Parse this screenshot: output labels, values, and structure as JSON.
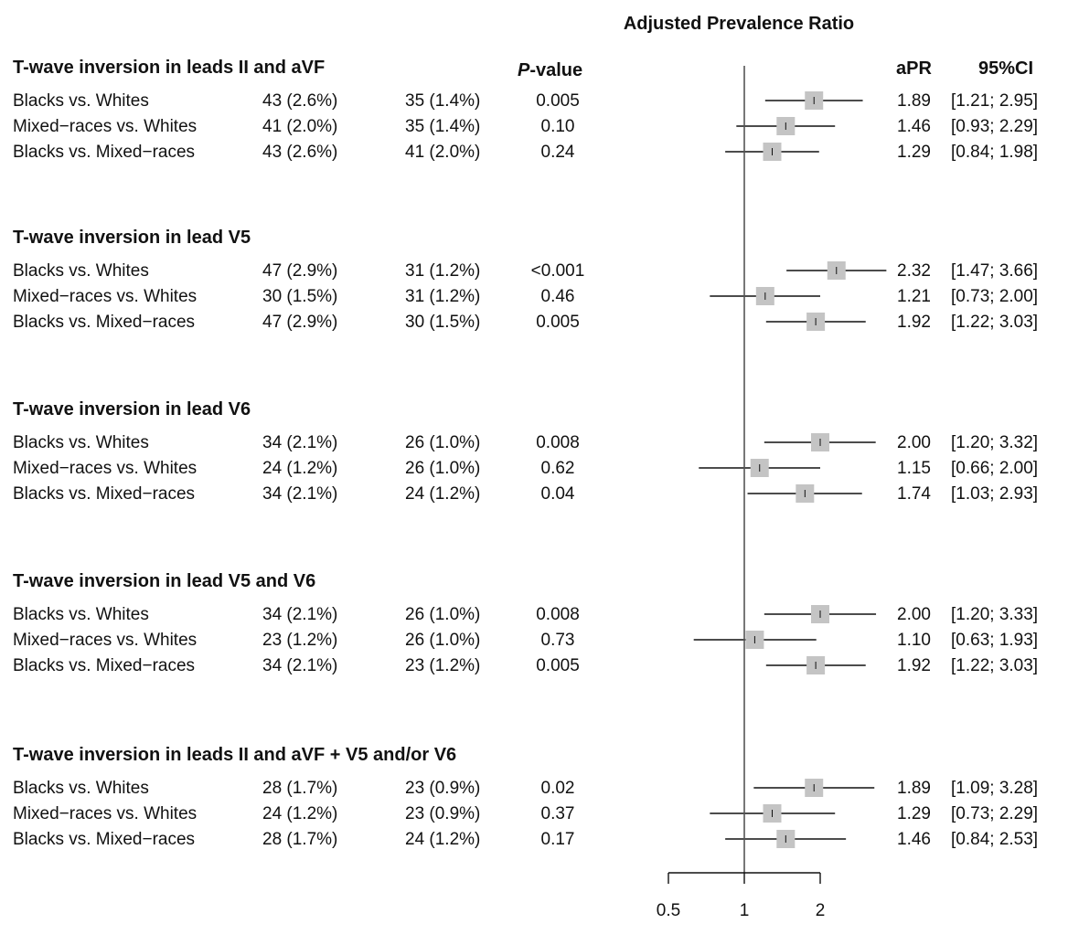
{
  "chart_data": {
    "type": "forest",
    "title": "Adjusted Prevalence Ratio",
    "columns": {
      "pvalue_prefix": "P",
      "pvalue_suffix": "-value",
      "apr": "aPR",
      "ci": "95%CI"
    },
    "xscale": "log",
    "xticks": [
      0.5,
      1,
      2
    ],
    "xtick_labels": [
      "0.5",
      "1",
      "2"
    ],
    "reference_line": 1,
    "groups": [
      {
        "title": "T-wave inversion in leads II and aVF",
        "rows": [
          {
            "label": "Blacks vs. Whites",
            "n1": "43 (2.6%)",
            "n2": "35 (1.4%)",
            "p": "0.005",
            "apr": 1.89,
            "lower": 1.21,
            "upper": 2.95,
            "apr_text": "1.89",
            "ci_text": "[1.21; 2.95]"
          },
          {
            "label": "Mixed−races  vs. Whites",
            "n1": "41 (2.0%)",
            "n2": "35 (1.4%)",
            "p": "0.10",
            "apr": 1.46,
            "lower": 0.93,
            "upper": 2.29,
            "apr_text": "1.46",
            "ci_text": "[0.93; 2.29]"
          },
          {
            "label": "Blacks vs. Mixed−races",
            "n1": "43 (2.6%)",
            "n2": "41 (2.0%)",
            "p": "0.24",
            "apr": 1.29,
            "lower": 0.84,
            "upper": 1.98,
            "apr_text": "1.29",
            "ci_text": "[0.84; 1.98]"
          }
        ]
      },
      {
        "title": "T-wave inversion in lead V5",
        "rows": [
          {
            "label": "Blacks vs. Whites",
            "n1": "47 (2.9%)",
            "n2": "31 (1.2%)",
            "p": "<0.001",
            "apr": 2.32,
            "lower": 1.47,
            "upper": 3.66,
            "apr_text": "2.32",
            "ci_text": "[1.47; 3.66]"
          },
          {
            "label": "Mixed−races  vs. Whites",
            "n1": "30 (1.5%)",
            "n2": "31 (1.2%)",
            "p": "0.46",
            "apr": 1.21,
            "lower": 0.73,
            "upper": 2.0,
            "apr_text": "1.21",
            "ci_text": "[0.73; 2.00]"
          },
          {
            "label": "Blacks vs. Mixed−races",
            "n1": "47 (2.9%)",
            "n2": "30 (1.5%)",
            "p": "0.005",
            "apr": 1.92,
            "lower": 1.22,
            "upper": 3.03,
            "apr_text": "1.92",
            "ci_text": "[1.22; 3.03]"
          }
        ]
      },
      {
        "title": "T-wave inversion in lead V6",
        "rows": [
          {
            "label": "Blacks vs. Whites",
            "n1": "34 (2.1%)",
            "n2": "26 (1.0%)",
            "p": "0.008",
            "apr": 2.0,
            "lower": 1.2,
            "upper": 3.32,
            "apr_text": "2.00",
            "ci_text": "[1.20; 3.32]"
          },
          {
            "label": "Mixed−races  vs. Whites",
            "n1": "24 (1.2%)",
            "n2": "26 (1.0%)",
            "p": "0.62",
            "apr": 1.15,
            "lower": 0.66,
            "upper": 2.0,
            "apr_text": "1.15",
            "ci_text": "[0.66; 2.00]"
          },
          {
            "label": "Blacks vs. Mixed−races",
            "n1": "34 (2.1%)",
            "n2": "24 (1.2%)",
            "p": "0.04",
            "apr": 1.74,
            "lower": 1.03,
            "upper": 2.93,
            "apr_text": "1.74",
            "ci_text": "[1.03; 2.93]"
          }
        ]
      },
      {
        "title": "T-wave inversion in lead V5 and V6",
        "rows": [
          {
            "label": "Blacks vs. Whites",
            "n1": "34 (2.1%)",
            "n2": "26 (1.0%)",
            "p": "0.008",
            "apr": 2.0,
            "lower": 1.2,
            "upper": 3.33,
            "apr_text": "2.00",
            "ci_text": "[1.20; 3.33]"
          },
          {
            "label": "Mixed−races  vs. Whites",
            "n1": "23 (1.2%)",
            "n2": "26 (1.0%)",
            "p": "0.73",
            "apr": 1.1,
            "lower": 0.63,
            "upper": 1.93,
            "apr_text": "1.10",
            "ci_text": "[0.63; 1.93]"
          },
          {
            "label": "Blacks vs. Mixed−races",
            "n1": "34 (2.1%)",
            "n2": "23 (1.2%)",
            "p": "0.005",
            "apr": 1.92,
            "lower": 1.22,
            "upper": 3.03,
            "apr_text": "1.92",
            "ci_text": "[1.22; 3.03]"
          }
        ]
      },
      {
        "title": "T-wave inversion in leads II and aVF + V5 and/or V6",
        "rows": [
          {
            "label": "Blacks vs. Whites",
            "n1": "28 (1.7%)",
            "n2": "23 (0.9%)",
            "p": "0.02",
            "apr": 1.89,
            "lower": 1.09,
            "upper": 3.28,
            "apr_text": "1.89",
            "ci_text": "[1.09; 3.28]"
          },
          {
            "label": "Mixed−races  vs. Whites",
            "n1": "24 (1.2%)",
            "n2": "23 (0.9%)",
            "p": "0.37",
            "apr": 1.29,
            "lower": 0.73,
            "upper": 2.29,
            "apr_text": "1.29",
            "ci_text": "[0.73; 2.29]"
          },
          {
            "label": "Blacks vs. Mixed−races",
            "n1": "28 (1.7%)",
            "n2": "24 (1.2%)",
            "p": "0.17",
            "apr": 1.46,
            "lower": 0.84,
            "upper": 2.53,
            "apr_text": "1.46",
            "ci_text": "[0.84; 2.53]"
          }
        ]
      }
    ]
  }
}
